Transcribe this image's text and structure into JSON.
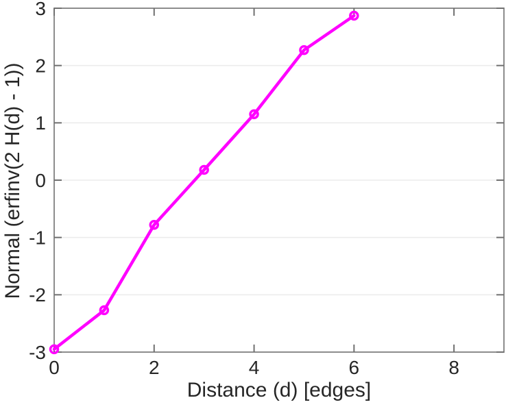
{
  "chart_data": {
    "type": "line",
    "title": "",
    "xlabel": "Distance (d) [edges]",
    "ylabel": "Normal (erfinv(2 H(d) - 1))",
    "x": [
      0,
      1,
      2,
      3,
      4,
      5,
      6
    ],
    "y": [
      -2.95,
      -2.27,
      -0.78,
      0.18,
      1.15,
      2.27,
      2.87
    ],
    "xlim": [
      0,
      9
    ],
    "ylim": [
      -3,
      3
    ],
    "xticks": [
      0,
      2,
      4,
      6,
      8
    ],
    "xtick_labels": [
      "0",
      "2",
      "4",
      "6",
      "8"
    ],
    "yticks": [
      -3,
      -2,
      -1,
      0,
      1,
      2,
      3
    ],
    "ytick_labels": [
      "-3",
      "-2",
      "-1",
      "0",
      "1",
      "2",
      "3"
    ],
    "grid": "horizontal",
    "legend": "none",
    "marker": "open-circle",
    "colors": {
      "line": "#FF00FF",
      "grid": "#ECECEC",
      "axis": "#8C8C8C",
      "tick": "#707070",
      "text": "#262626"
    }
  }
}
